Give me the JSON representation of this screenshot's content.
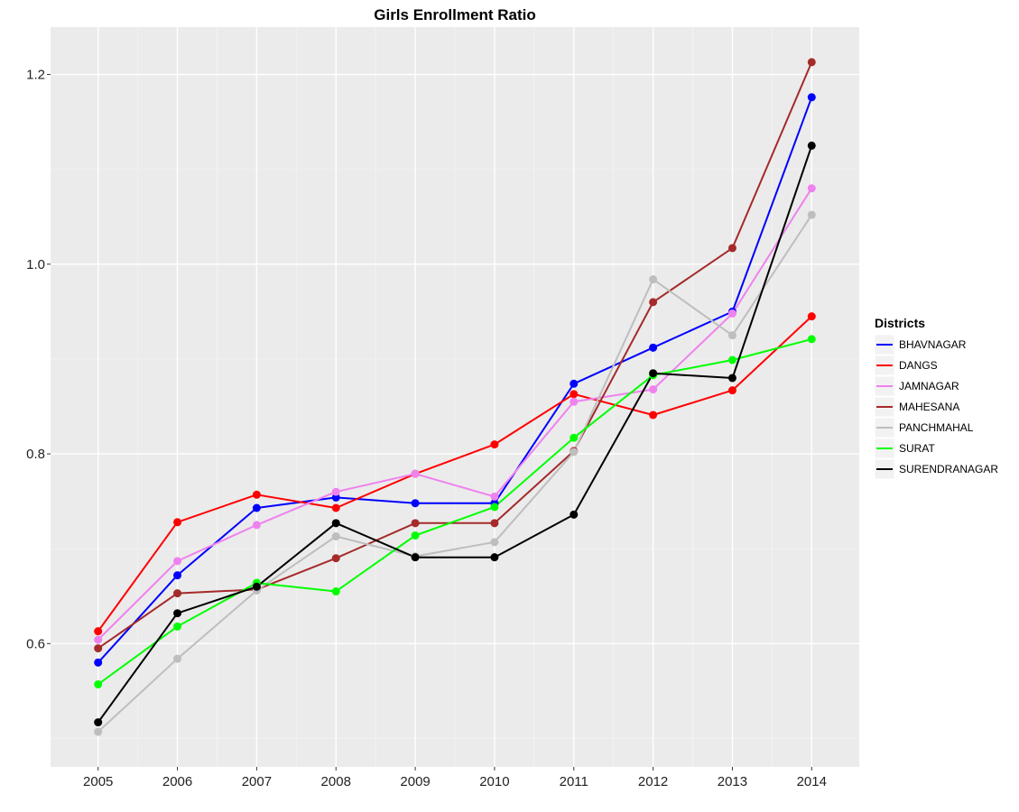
{
  "chart_data": {
    "type": "line",
    "title": "Girls Enrollment Ratio",
    "xlabel": "",
    "ylabel": "",
    "x": [
      2005,
      2006,
      2007,
      2008,
      2009,
      2010,
      2011,
      2012,
      2013,
      2014
    ],
    "x_tick_labels": [
      "2005",
      "2006",
      "2007",
      "2008",
      "2009",
      "2010",
      "2011",
      "2012",
      "2013",
      "2014"
    ],
    "y_ticks": [
      0.6,
      0.8,
      1.0,
      1.2
    ],
    "y_tick_labels": [
      "0.6",
      "0.8",
      "1.0",
      "1.2"
    ],
    "ylim": [
      0.47,
      1.25
    ],
    "grid": true,
    "legend": {
      "title": "Districts",
      "position": "right"
    },
    "series": [
      {
        "name": "BHAVNAGAR",
        "color": "#0000ff",
        "values": [
          0.58,
          0.672,
          0.743,
          0.754,
          0.748,
          0.748,
          0.874,
          0.912,
          0.95,
          1.176
        ]
      },
      {
        "name": "DANGS",
        "color": "#ff0000",
        "values": [
          0.613,
          0.728,
          0.757,
          0.743,
          0.779,
          0.81,
          0.863,
          0.841,
          0.867,
          0.945
        ]
      },
      {
        "name": "JAMNAGAR",
        "color": "#ee82ee",
        "values": [
          0.604,
          0.687,
          0.725,
          0.76,
          0.779,
          0.755,
          0.855,
          0.868,
          0.948,
          1.08
        ]
      },
      {
        "name": "MAHESANA",
        "color": "#a52a2a",
        "values": [
          0.595,
          0.653,
          0.657,
          0.69,
          0.727,
          0.727,
          0.803,
          0.96,
          1.017,
          1.213
        ]
      },
      {
        "name": "PANCHMAHAL",
        "color": "#bebebe",
        "values": [
          0.507,
          0.584,
          0.656,
          0.713,
          0.692,
          0.707,
          0.802,
          0.984,
          0.925,
          1.052
        ]
      },
      {
        "name": "SURAT",
        "color": "#00ff00",
        "values": [
          0.557,
          0.618,
          0.664,
          0.655,
          0.714,
          0.744,
          0.817,
          0.883,
          0.899,
          0.921
        ]
      },
      {
        "name": "SURENDRANAGAR",
        "color": "#000000",
        "values": [
          0.517,
          0.632,
          0.66,
          0.727,
          0.691,
          0.691,
          0.736,
          0.885,
          0.88,
          1.125
        ]
      }
    ]
  }
}
